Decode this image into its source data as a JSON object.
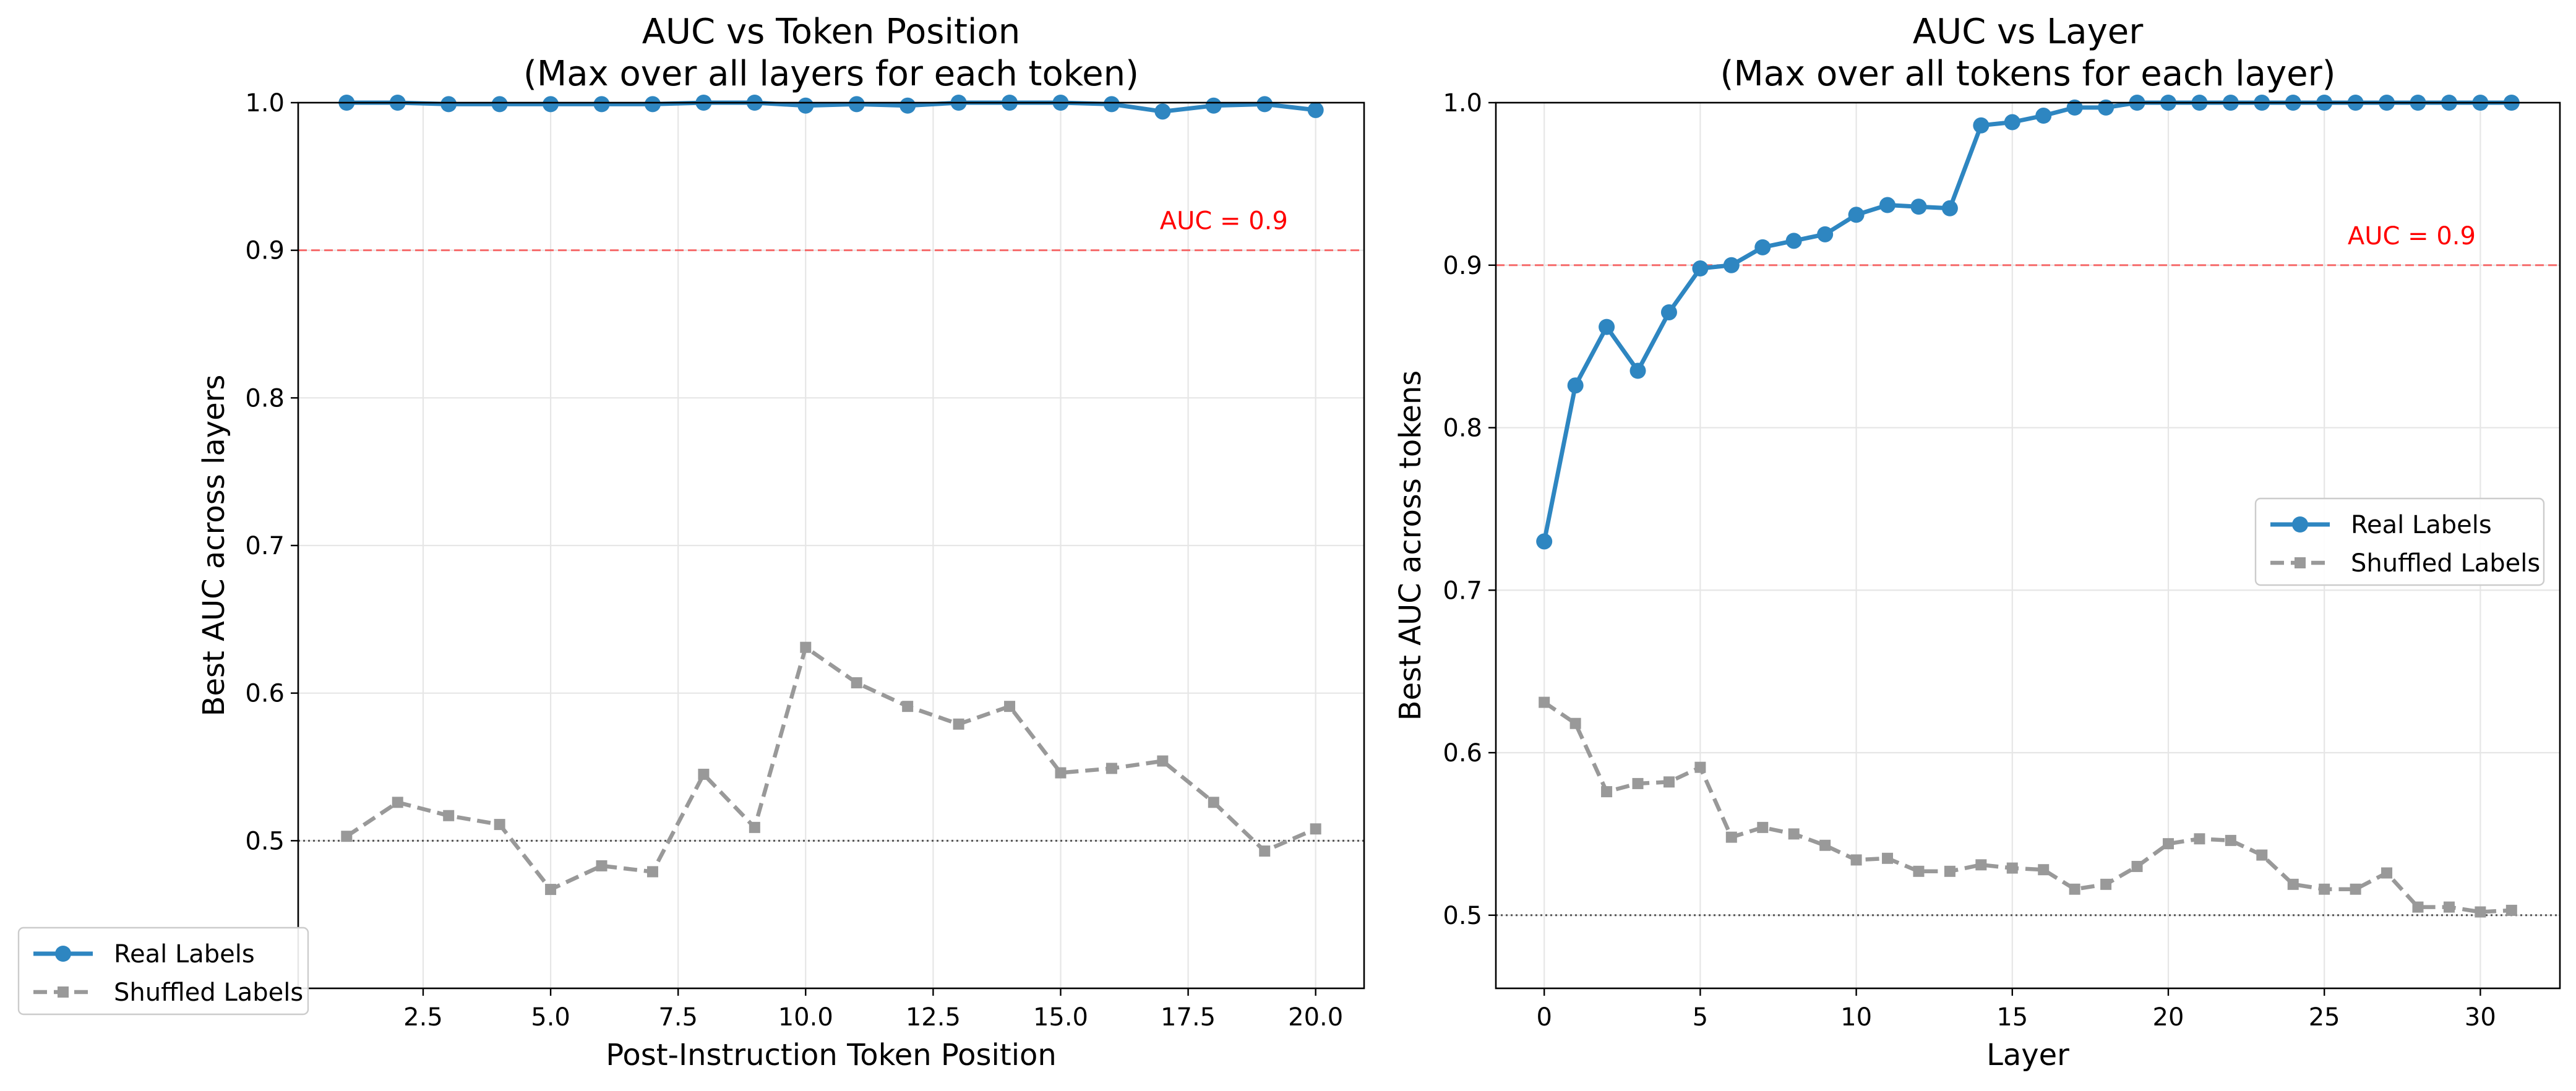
{
  "figure": {
    "colors": {
      "real": "#2e86c1",
      "shuffled": "#999999",
      "threshold": "#ff0000",
      "chance": "#555555",
      "grid": "#e6e6e6",
      "axis": "#000000"
    }
  },
  "legend": {
    "real_label": "Real Labels",
    "shuffled_label": "Shuffled Labels"
  },
  "chart_data": [
    {
      "type": "line",
      "title": "AUC vs Token Position",
      "subtitle": "(Max over all layers for each token)",
      "xlabel": "Post-Instruction Token Position",
      "ylabel": "Best AUC across layers",
      "xlim": [
        0.05,
        20.95
      ],
      "ylim": [
        0.4,
        1.0
      ],
      "xticks": [
        2.5,
        5.0,
        7.5,
        10.0,
        12.5,
        15.0,
        17.5,
        20.0
      ],
      "xtick_labels": [
        "2.5",
        "5.0",
        "7.5",
        "10.0",
        "12.5",
        "15.0",
        "17.5",
        "20.0"
      ],
      "yticks": [
        0.5,
        0.6,
        0.7,
        0.8,
        0.9,
        1.0
      ],
      "ytick_labels": [
        "0.5",
        "0.6",
        "0.7",
        "0.8",
        "0.9",
        "1.0"
      ],
      "grid": true,
      "legend_position": "lower-left (outside)",
      "threshold": {
        "y": 0.9,
        "label": "AUC = 0.9",
        "label_x": 18.2
      },
      "chance_line": 0.5,
      "x": [
        1,
        2,
        3,
        4,
        5,
        6,
        7,
        8,
        9,
        10,
        11,
        12,
        13,
        14,
        15,
        16,
        17,
        18,
        19,
        20
      ],
      "series": [
        {
          "name": "Real Labels",
          "key": "real",
          "marker": "circle",
          "values": [
            1.0,
            1.0,
            0.999,
            0.999,
            0.999,
            0.999,
            0.999,
            1.0,
            1.0,
            0.998,
            0.999,
            0.998,
            1.0,
            1.0,
            1.0,
            0.999,
            0.994,
            0.998,
            0.999,
            0.995
          ]
        },
        {
          "name": "Shuffled Labels",
          "key": "shuffled",
          "marker": "square",
          "values": [
            0.503,
            0.526,
            0.517,
            0.511,
            0.467,
            0.483,
            0.479,
            0.545,
            0.509,
            0.631,
            0.607,
            0.591,
            0.579,
            0.591,
            0.546,
            0.549,
            0.554,
            0.526,
            0.493,
            0.508
          ]
        }
      ]
    },
    {
      "type": "line",
      "title": "AUC vs Layer",
      "subtitle": "(Max over all tokens for each layer)",
      "xlabel": "Layer",
      "ylabel": "Best AUC across tokens",
      "xlim": [
        -1.55,
        32.55
      ],
      "ylim": [
        0.455,
        1.0
      ],
      "xticks": [
        0,
        5,
        10,
        15,
        20,
        25,
        30
      ],
      "xtick_labels": [
        "0",
        "5",
        "10",
        "15",
        "20",
        "25",
        "30"
      ],
      "yticks": [
        0.5,
        0.6,
        0.7,
        0.8,
        0.9,
        1.0
      ],
      "ytick_labels": [
        "0.5",
        "0.6",
        "0.7",
        "0.8",
        "0.9",
        "1.0"
      ],
      "grid": true,
      "legend_position": "center-right",
      "threshold": {
        "y": 0.9,
        "label": "AUC = 0.9",
        "label_x": 27.8
      },
      "chance_line": 0.5,
      "x": [
        0,
        1,
        2,
        3,
        4,
        5,
        6,
        7,
        8,
        9,
        10,
        11,
        12,
        13,
        14,
        15,
        16,
        17,
        18,
        19,
        20,
        21,
        22,
        23,
        24,
        25,
        26,
        27,
        28,
        29,
        30,
        31
      ],
      "series": [
        {
          "name": "Real Labels",
          "key": "real",
          "marker": "circle",
          "values": [
            0.73,
            0.826,
            0.862,
            0.835,
            0.871,
            0.898,
            0.9,
            0.911,
            0.915,
            0.919,
            0.931,
            0.937,
            0.936,
            0.935,
            0.986,
            0.988,
            0.992,
            0.997,
            0.997,
            1.0,
            1.0,
            1.0,
            1.0,
            1.0,
            1.0,
            1.0,
            1.0,
            1.0,
            1.0,
            1.0,
            1.0,
            1.0
          ]
        },
        {
          "name": "Shuffled Labels",
          "key": "shuffled",
          "marker": "square",
          "values": [
            0.631,
            0.618,
            0.576,
            0.581,
            0.582,
            0.591,
            0.548,
            0.554,
            0.55,
            0.543,
            0.534,
            0.535,
            0.527,
            0.527,
            0.531,
            0.529,
            0.528,
            0.516,
            0.519,
            0.53,
            0.544,
            0.547,
            0.546,
            0.537,
            0.519,
            0.516,
            0.516,
            0.526,
            0.505,
            0.505,
            0.502,
            0.503
          ]
        }
      ]
    }
  ]
}
